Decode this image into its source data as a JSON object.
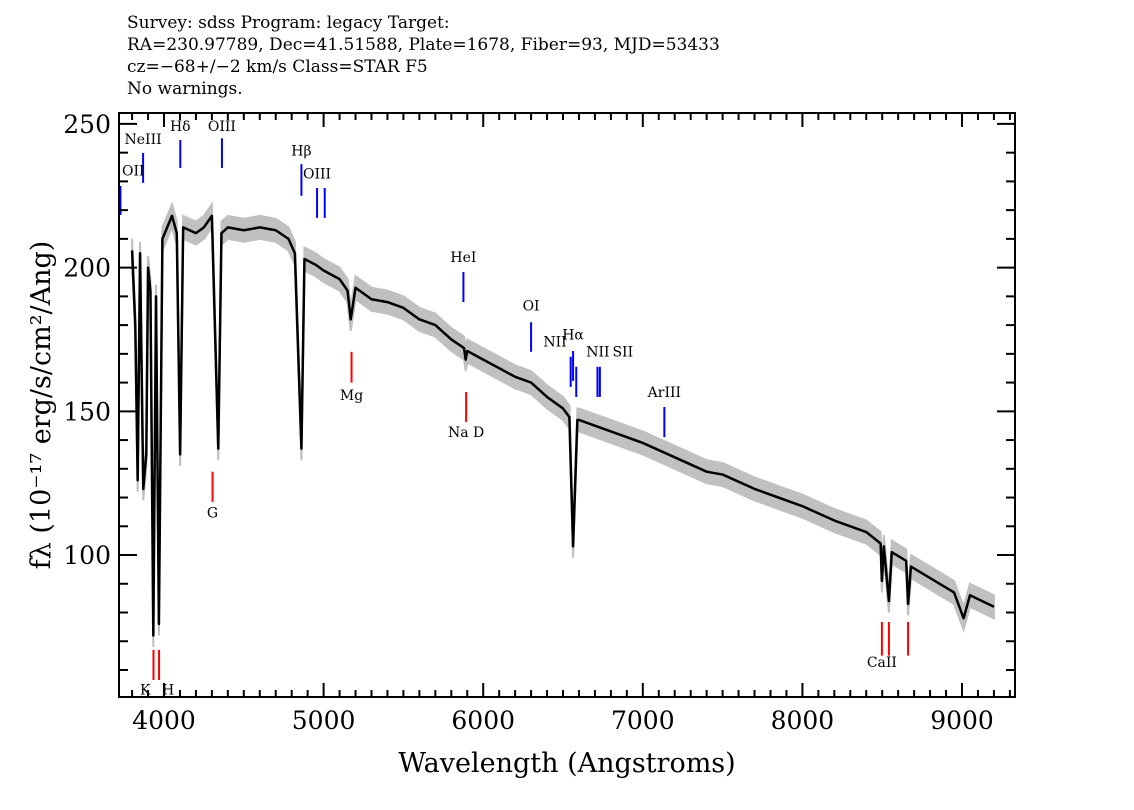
{
  "header": {
    "line1": "Survey: sdss Program: legacy Target:",
    "line2": "RA=230.97789, Dec=41.51588, Plate=1678, Fiber=93, MJD=53433",
    "line3": "cz=−68+/−2 km/s Class=STAR F5",
    "line4": "No warnings."
  },
  "chart_data": {
    "type": "line",
    "xlabel": "Wavelength (Angstroms)",
    "ylabel": "fλ (10⁻¹⁷ erg/s/cm²/Ang)",
    "xlim": [
      3718,
      9332
    ],
    "ylim": [
      50.6,
      253.8
    ],
    "x_ticks": [
      4000,
      5000,
      6000,
      7000,
      8000,
      9000
    ],
    "y_ticks": [
      100,
      150,
      200,
      250
    ],
    "grid": false,
    "colors": {
      "flux": "#000000",
      "error_band": "#c0c0c0",
      "emission": "#0000ff",
      "absorption": "#ff0000"
    },
    "series": [
      {
        "x": [
          3800,
          3820,
          3835,
          3850,
          3870,
          3889,
          3900,
          3915,
          3933,
          3950,
          3968,
          3990,
          4050,
          4080,
          4101,
          4120,
          4200,
          4250,
          4300,
          4340,
          4360,
          4400,
          4500,
          4600,
          4700,
          4780,
          4820,
          4861,
          4880,
          4950,
          5000,
          5100,
          5150,
          5170,
          5200,
          5300,
          5400,
          5500,
          5600,
          5700,
          5800,
          5880,
          5890,
          5900,
          6000,
          6100,
          6200,
          6300,
          6400,
          6500,
          6540,
          6563,
          6590,
          6600,
          6700,
          6800,
          6900,
          7000,
          7200,
          7400,
          7500,
          7700,
          8000,
          8200,
          8400,
          8490,
          8498,
          8510,
          8542,
          8560,
          8650,
          8662,
          8680,
          8800,
          8950,
          9010,
          9050,
          9200
        ],
        "y": [
          206,
          180,
          126,
          205,
          123,
          135,
          200,
          192,
          72,
          190,
          76,
          210,
          218,
          212,
          135,
          214,
          212,
          214,
          218,
          137,
          212,
          214,
          213,
          214,
          213,
          210,
          205,
          137,
          203,
          201,
          199,
          196,
          192,
          182,
          193,
          189,
          188,
          186,
          182,
          180,
          175,
          172,
          168,
          171,
          168,
          165,
          162,
          160,
          155,
          151,
          148,
          103,
          147,
          147,
          145,
          143,
          141,
          139,
          134,
          129,
          128,
          123,
          117,
          112,
          108,
          104,
          91,
          103,
          84,
          101,
          98,
          83,
          96,
          92,
          87,
          78,
          86,
          82
        ]
      }
    ],
    "line_markers": [
      {
        "label": "OII",
        "wavelength": 3727,
        "kind": "emission",
        "top": 228.4,
        "bottom": 218.3,
        "label_at": 232
      },
      {
        "label": "NeIII",
        "wavelength": 3869,
        "kind": "emission",
        "top": 239.9,
        "bottom": 229.5,
        "label_at": 243
      },
      {
        "label": "Hδ",
        "wavelength": 4102,
        "kind": "emission",
        "top": 244.4,
        "bottom": 234.7,
        "label_at": 247.5
      },
      {
        "label": "OIII",
        "wavelength": 4363,
        "kind": "emission",
        "top": 245,
        "bottom": 234.7,
        "label_at": 247.5
      },
      {
        "label": "Hβ",
        "wavelength": 4861,
        "kind": "emission",
        "top": 236,
        "bottom": 225,
        "label_at": 239
      },
      {
        "label": "OIII",
        "wavelength": 4959,
        "kind": "emission",
        "top": 227.7,
        "bottom": 217.3,
        "label_at": 231
      },
      {
        "label": "",
        "wavelength": 5007,
        "kind": "emission",
        "top": 227.7,
        "bottom": 217.3,
        "label_at": 231
      },
      {
        "label": "HeI",
        "wavelength": 5876,
        "kind": "emission",
        "top": 198.5,
        "bottom": 188,
        "label_at": 202
      },
      {
        "label": "OI",
        "wavelength": 6300,
        "kind": "emission",
        "top": 181,
        "bottom": 170.7,
        "label_at": 185
      },
      {
        "label": "NII",
        "wavelength": 6548,
        "kind": "emission",
        "top": 169,
        "bottom": 158.5,
        "label_at": 172.5
      },
      {
        "label": "Hα",
        "wavelength": 6563,
        "kind": "emission",
        "top": 171,
        "bottom": 160.6,
        "label_at": 175
      },
      {
        "label": "NII",
        "wavelength": 6583,
        "kind": "emission",
        "top": 165.5,
        "bottom": 155,
        "label_at": 169
      },
      {
        "label": "SII",
        "wavelength": 6716,
        "kind": "emission",
        "top": 165.5,
        "bottom": 155,
        "label_at": 169
      },
      {
        "label": "",
        "wavelength": 6731,
        "kind": "emission",
        "top": 165.5,
        "bottom": 155,
        "label_at": 169
      },
      {
        "label": "ArIII",
        "wavelength": 7135,
        "kind": "emission",
        "top": 151.5,
        "bottom": 141,
        "label_at": 155
      },
      {
        "label": "Mg",
        "wavelength": 5175,
        "kind": "absorption",
        "top": 170.7,
        "bottom": 160,
        "label_at": 154
      },
      {
        "label": "Na  D",
        "wavelength": 5893,
        "kind": "absorption",
        "top": 156.7,
        "bottom": 146.3,
        "label_at": 141
      },
      {
        "label": "G",
        "wavelength": 4304,
        "kind": "absorption",
        "top": 129,
        "bottom": 118.5,
        "label_at": 113
      },
      {
        "label": "K",
        "wavelength": 3934,
        "kind": "absorption",
        "top": 67,
        "bottom": 56.5,
        "label_at": 51.5
      },
      {
        "label": "H",
        "wavelength": 3969,
        "kind": "absorption",
        "top": 67,
        "bottom": 56.5,
        "label_at": 51.5
      },
      {
        "label": "CaII",
        "wavelength": 8498,
        "kind": "absorption",
        "top": 76.7,
        "bottom": 65,
        "label_at": 61
      },
      {
        "label": "",
        "wavelength": 8542,
        "kind": "absorption",
        "top": 76.7,
        "bottom": 65,
        "label_at": 61
      },
      {
        "label": "",
        "wavelength": 8662,
        "kind": "absorption",
        "top": 76.7,
        "bottom": 65,
        "label_at": 61
      }
    ]
  }
}
